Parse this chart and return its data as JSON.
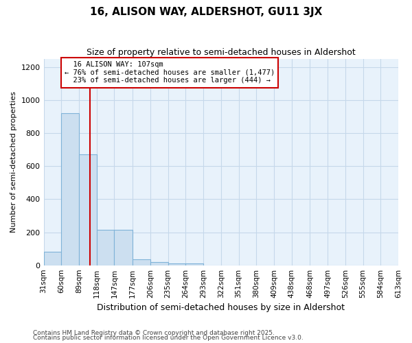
{
  "title1": "16, ALISON WAY, ALDERSHOT, GU11 3JX",
  "title2": "Size of property relative to semi-detached houses in Aldershot",
  "xlabel": "Distribution of semi-detached houses by size in Aldershot",
  "ylabel": "Number of semi-detached properties",
  "bins": [
    31,
    60,
    89,
    118,
    147,
    177,
    206,
    235,
    264,
    293,
    322,
    351,
    380,
    409,
    438,
    468,
    497,
    526,
    555,
    584,
    613
  ],
  "counts": [
    80,
    920,
    670,
    215,
    215,
    35,
    20,
    10,
    10,
    0,
    0,
    0,
    0,
    0,
    0,
    0,
    0,
    0,
    0,
    0
  ],
  "bar_color": "#ccdff0",
  "bar_edge_color": "#7fb3d8",
  "grid_color": "#c5d8ea",
  "background_color": "#e8f2fb",
  "property_size": 107,
  "property_label": "16 ALISON WAY: 107sqm",
  "pct_smaller": 76,
  "pct_larger": 23,
  "count_smaller": 1477,
  "count_larger": 444,
  "annotation_box_color": "#cc0000",
  "vline_color": "#cc0000",
  "ylim": [
    0,
    1250
  ],
  "yticks": [
    0,
    200,
    400,
    600,
    800,
    1000,
    1200
  ],
  "footer1": "Contains HM Land Registry data © Crown copyright and database right 2025.",
  "footer2": "Contains public sector information licensed under the Open Government Licence v3.0."
}
